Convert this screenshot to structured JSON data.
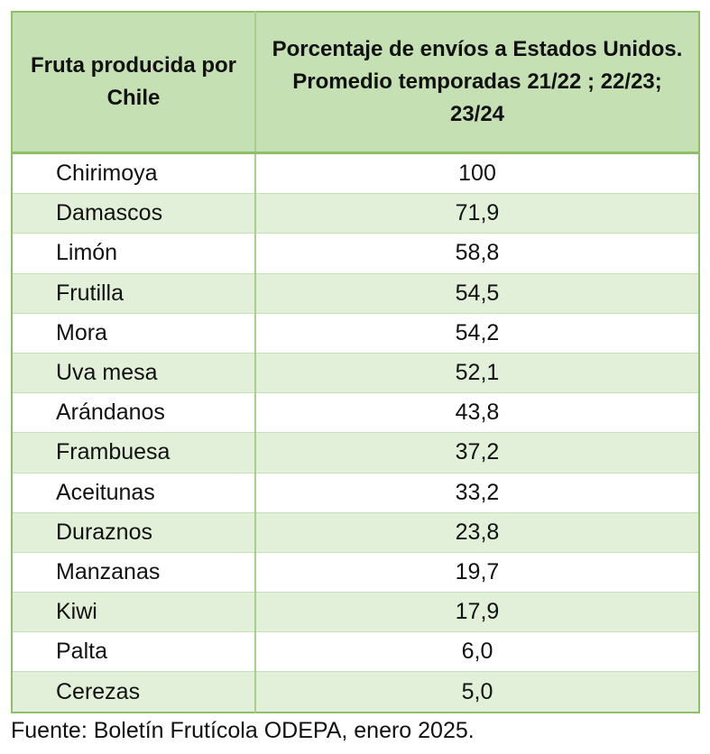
{
  "table": {
    "header": [
      "Fruta producida por Chile",
      "Porcentaje de envíos a Estados Unidos. Promedio temporadas 21/22 ; 22/23; 23/24"
    ],
    "rows": [
      [
        "Chirimoya",
        "100"
      ],
      [
        "Damascos",
        "71,9"
      ],
      [
        "Limón",
        "58,8"
      ],
      [
        "Frutilla",
        "54,5"
      ],
      [
        "Mora",
        "54,2"
      ],
      [
        "Uva mesa",
        "52,1"
      ],
      [
        "Arándanos",
        "43,8"
      ],
      [
        "Frambuesa",
        "37,2"
      ],
      [
        "Aceitunas",
        "33,2"
      ],
      [
        "Duraznos",
        "23,8"
      ],
      [
        "Manzanas",
        "19,7"
      ],
      [
        "Kiwi",
        "17,9"
      ],
      [
        "Palta",
        "6,0"
      ],
      [
        "Cerezas",
        "5,0"
      ]
    ]
  },
  "source": "Fuente: Boletín Frutícola ODEPA, enero 2025."
}
